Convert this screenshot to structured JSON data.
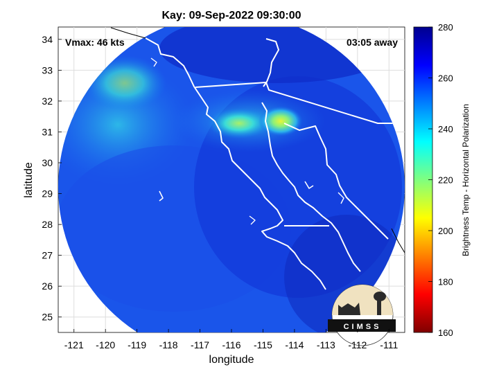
{
  "chart_data": {
    "type": "heatmap",
    "title": "Kay: 09-Sep-2022 09:30:00",
    "xlabel": "longitude",
    "ylabel": "latitude",
    "xlim": [
      -121.5,
      -110.5
    ],
    "ylim": [
      24.5,
      34.4
    ],
    "x_ticks": [
      "-121",
      "-120",
      "-119",
      "-118",
      "-117",
      "-116",
      "-115",
      "-114",
      "-113",
      "-112",
      "-111"
    ],
    "y_ticks": [
      "25",
      "26",
      "27",
      "28",
      "29",
      "30",
      "31",
      "32",
      "33",
      "34"
    ],
    "colorbar": {
      "label": "Brightness Temp - Horizontal Polarization",
      "range": [
        160,
        280
      ],
      "ticks": [
        "160",
        "180",
        "200",
        "220",
        "240",
        "260",
        "280"
      ]
    },
    "annotations": {
      "vmax": "Vmax: 46 kts",
      "time_away": "03:05 away",
      "logo": "CIMSS"
    },
    "warm_cores": [
      {
        "lon": -114.6,
        "lat": 31.4,
        "value": 212
      },
      {
        "lon": -115.9,
        "lat": 31.6,
        "value": 226
      }
    ],
    "grid": true
  }
}
